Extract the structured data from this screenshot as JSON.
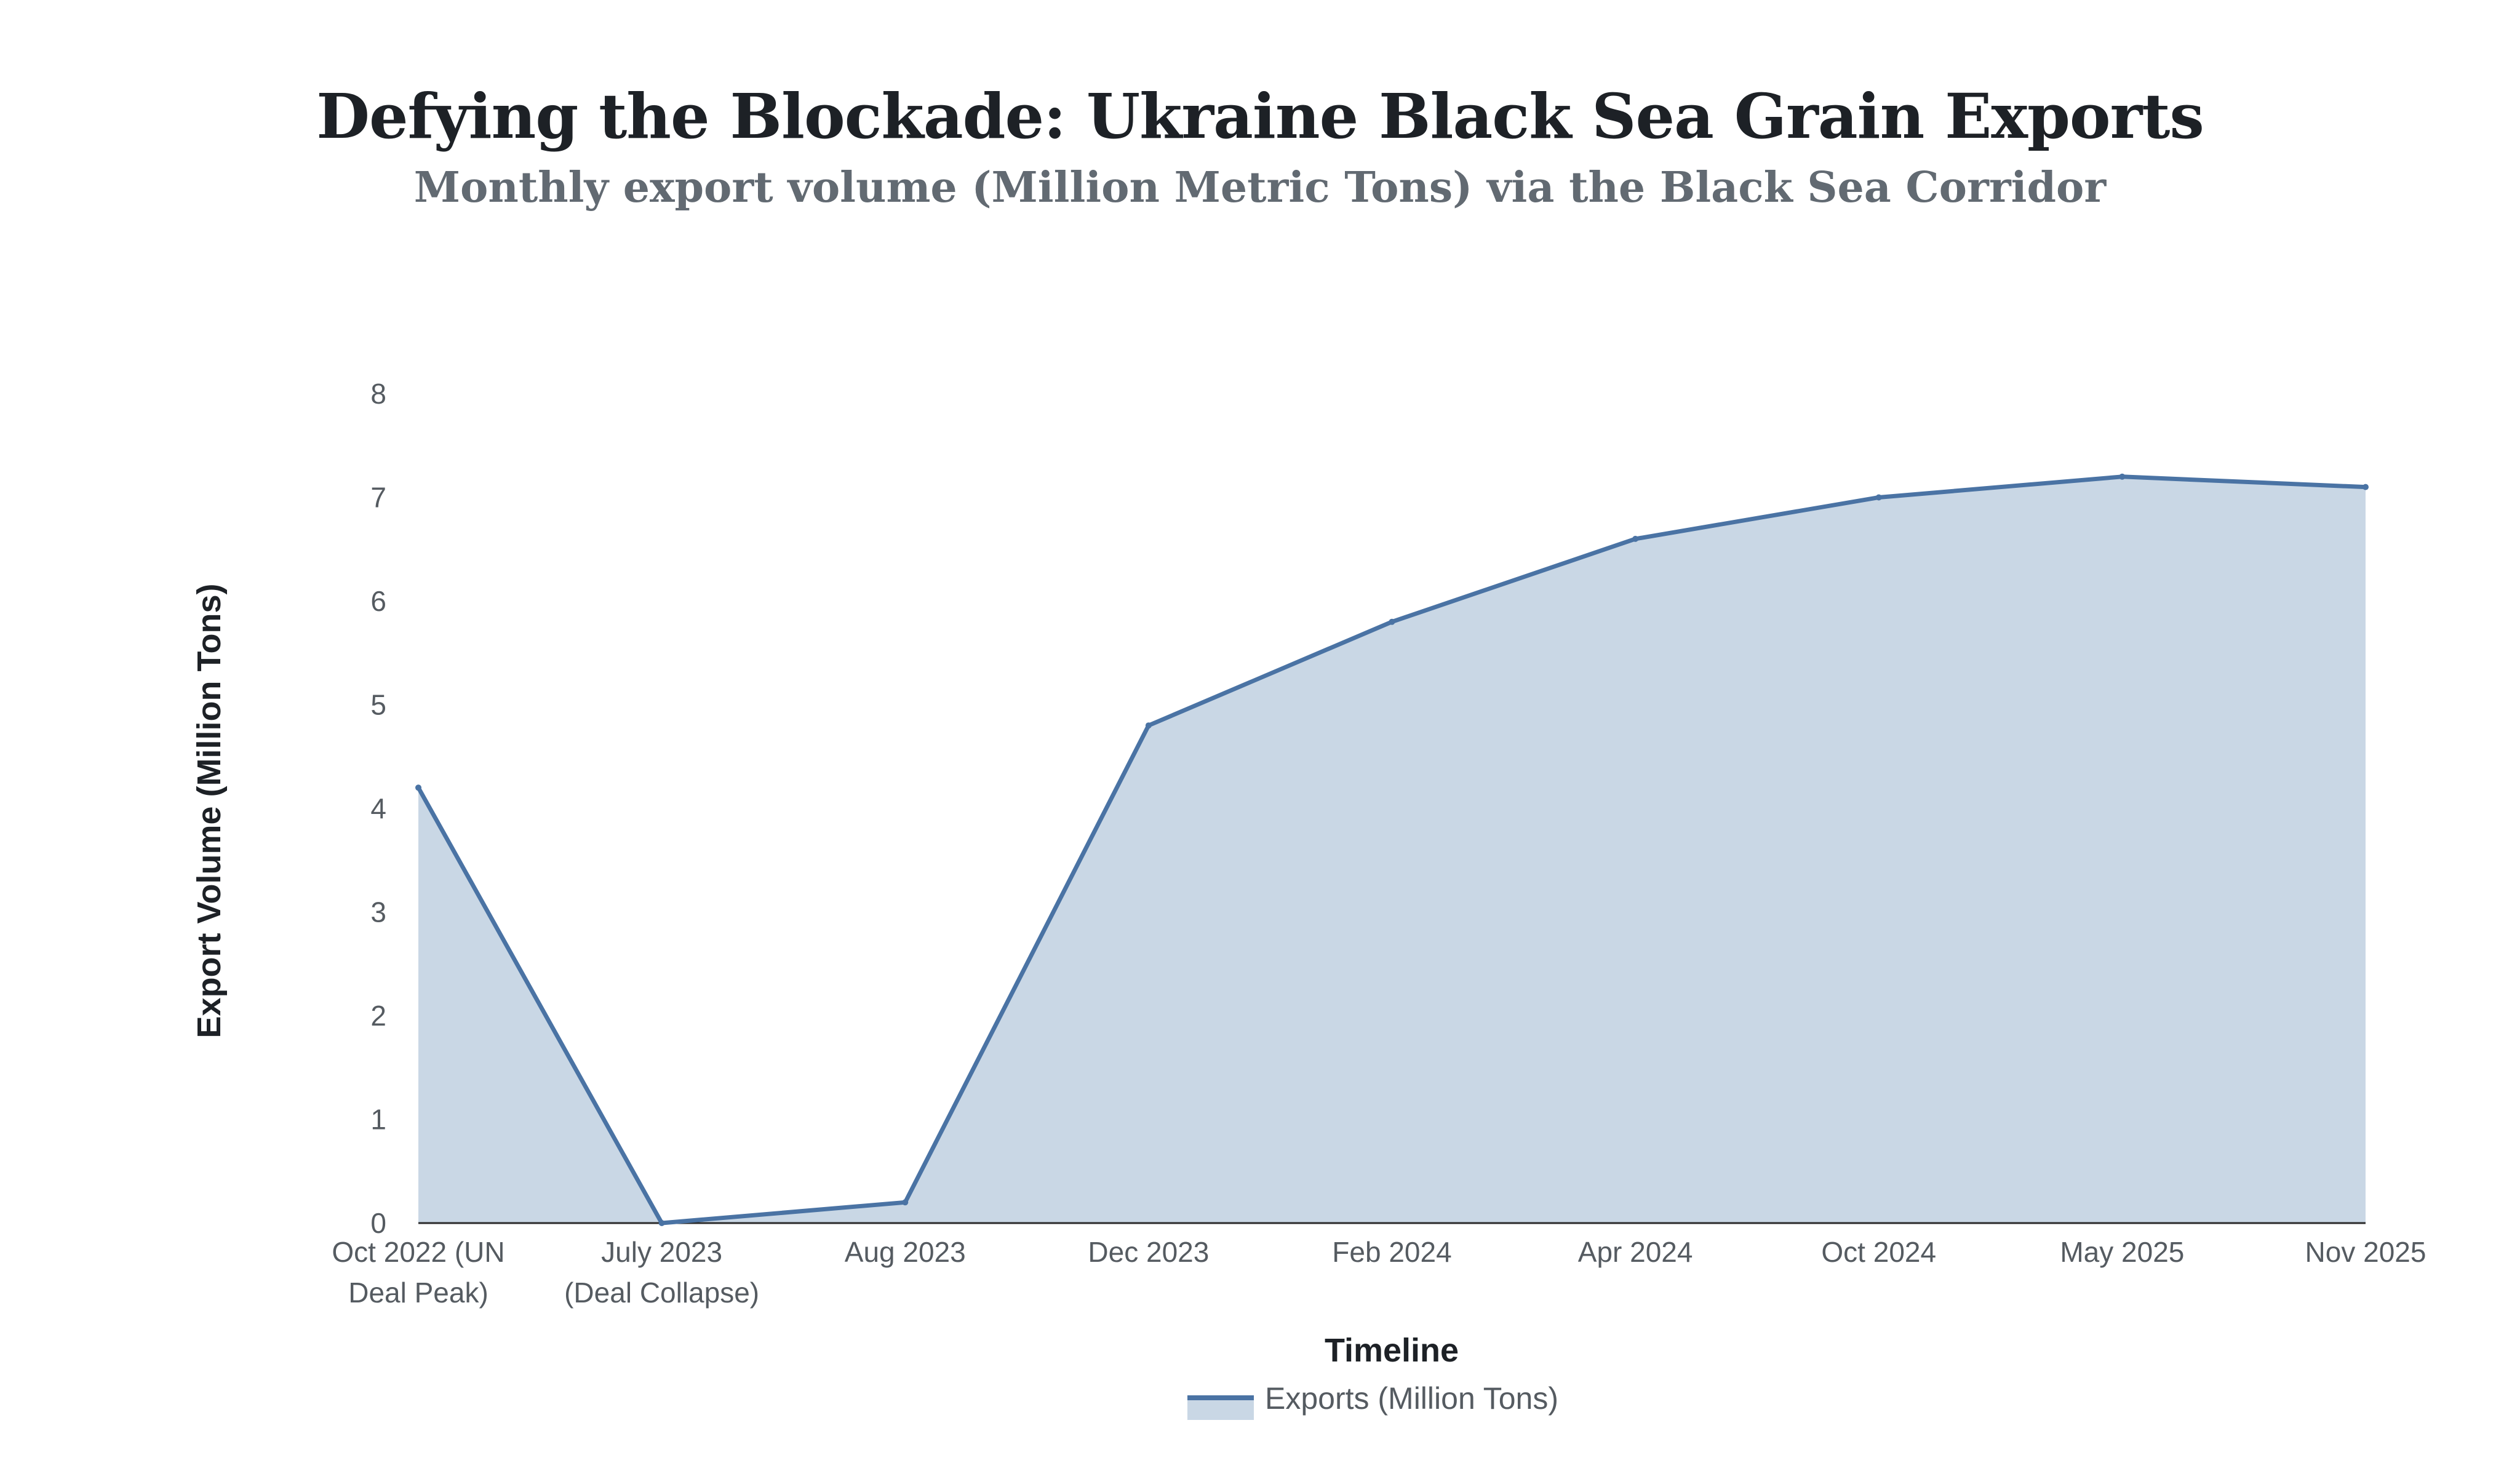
{
  "title": "Defying the Blockade: Ukraine Black Sea Grain Exports",
  "subtitle": "Monthly export volume (Million Metric Tons) via the Black Sea Corridor",
  "chart_data": {
    "type": "area",
    "categories": [
      [
        "Oct 2022 (UN",
        "Deal Peak)"
      ],
      [
        "July 2023",
        "(Deal Collapse)"
      ],
      [
        "Aug 2023"
      ],
      [
        "Dec 2023"
      ],
      [
        "Feb 2024"
      ],
      [
        "Apr 2024"
      ],
      [
        "Oct 2024"
      ],
      [
        "May 2025"
      ],
      [
        "Nov 2025"
      ]
    ],
    "series": [
      {
        "name": "Exports (Million Tons)",
        "values": [
          4.2,
          0.0,
          0.2,
          4.8,
          5.8,
          6.6,
          7.0,
          7.2,
          7.1
        ],
        "line_color": "#4a73a4",
        "fill_color": "#c9d7e5"
      }
    ],
    "xlabel": "Timeline",
    "ylabel": "Export Volume (Million Tons)",
    "ylim": [
      0,
      8
    ],
    "yticks": [
      0,
      1,
      2,
      3,
      4,
      5,
      6,
      7,
      8
    ],
    "grid": false,
    "legend_position": "bottom-center"
  }
}
